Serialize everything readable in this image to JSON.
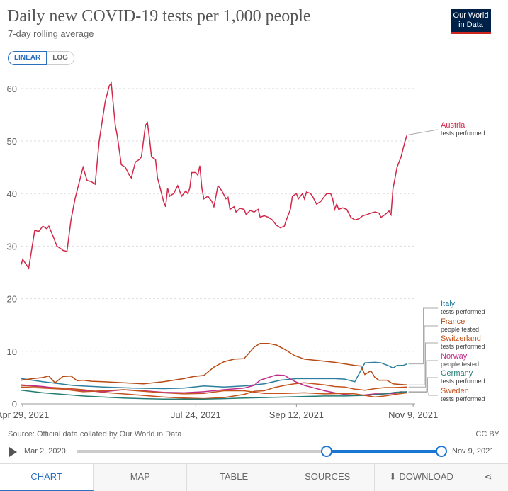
{
  "header": {
    "title": "Daily new COVID-19 tests per 1,000 people",
    "subtitle": "7-day rolling average",
    "logo_line1": "Our World",
    "logo_line2": "in Data"
  },
  "scale": {
    "linear": "LINEAR",
    "log": "LOG"
  },
  "footer": {
    "source": "Source: Official data collated by Our World in Data",
    "license": "CC BY"
  },
  "timeline": {
    "start": "Mar 2, 2020",
    "end": "Nov 9, 2021"
  },
  "tabs": {
    "chart": "CHART",
    "map": "MAP",
    "table": "TABLE",
    "sources": "SOURCES",
    "download": "DOWNLOAD"
  },
  "chart_data": {
    "type": "line",
    "title": "Daily new COVID-19 tests per 1,000 people",
    "subtitle": "7-day rolling average",
    "x_domain": [
      0,
      195
    ],
    "x_ticks": [
      {
        "day": 0,
        "label": "Apr 29, 2021"
      },
      {
        "day": 86,
        "label": "Jul 24, 2021"
      },
      {
        "day": 136,
        "label": "Sep 12, 2021"
      },
      {
        "day": 194,
        "label": "Nov 9, 2021"
      }
    ],
    "ylim": [
      0,
      62
    ],
    "y_ticks": [
      0,
      10,
      20,
      30,
      40,
      50,
      60
    ],
    "series": [
      {
        "name": "Austria",
        "unit": "tests performed",
        "color": "#d1284a",
        "points": [
          [
            -3,
            26.5
          ],
          [
            0,
            27.5
          ],
          [
            3,
            25.8
          ],
          [
            6,
            33
          ],
          [
            8,
            32.8
          ],
          [
            10,
            33.8
          ],
          [
            12,
            33.3
          ],
          [
            13,
            33.8
          ],
          [
            15,
            32
          ],
          [
            17,
            30
          ],
          [
            19,
            29.5
          ],
          [
            20,
            29.2
          ],
          [
            22,
            29
          ],
          [
            24,
            35
          ],
          [
            26,
            39
          ],
          [
            28,
            42
          ],
          [
            30,
            45
          ],
          [
            32,
            42.5
          ],
          [
            34,
            42.3
          ],
          [
            36,
            41.8
          ],
          [
            38,
            50
          ],
          [
            39,
            52.5
          ],
          [
            41,
            57.5
          ],
          [
            43,
            60.5
          ],
          [
            44,
            61
          ],
          [
            46,
            53
          ],
          [
            47,
            51
          ],
          [
            49,
            45.5
          ],
          [
            51,
            45
          ],
          [
            53,
            43.5
          ],
          [
            54,
            43
          ],
          [
            56,
            46
          ],
          [
            58,
            46.5
          ],
          [
            59,
            47
          ],
          [
            61,
            53
          ],
          [
            62,
            53.5
          ],
          [
            63,
            50.5
          ],
          [
            64,
            47
          ],
          [
            66,
            46.5
          ],
          [
            67,
            43
          ],
          [
            68,
            41.5
          ],
          [
            70,
            38.5
          ],
          [
            71,
            37.5
          ],
          [
            72,
            41
          ],
          [
            73,
            39.5
          ],
          [
            75,
            40
          ],
          [
            77,
            41.5
          ],
          [
            79,
            39.5
          ],
          [
            81,
            40.5
          ],
          [
            82,
            40
          ],
          [
            83,
            41
          ],
          [
            84,
            44
          ],
          [
            86,
            44
          ],
          [
            87,
            43.5
          ],
          [
            88,
            45.3
          ],
          [
            89,
            41
          ],
          [
            90,
            39
          ],
          [
            92,
            39.5
          ],
          [
            94,
            38.5
          ],
          [
            95,
            37.5
          ],
          [
            97,
            41.5
          ],
          [
            99,
            40.5
          ],
          [
            101,
            39
          ],
          [
            102,
            39.3
          ],
          [
            103,
            37
          ],
          [
            105,
            37.5
          ],
          [
            106,
            36.5
          ],
          [
            108,
            37.2
          ],
          [
            110,
            37
          ],
          [
            111,
            36
          ],
          [
            113,
            36.8
          ],
          [
            115,
            36.5
          ],
          [
            117,
            37
          ],
          [
            118,
            35.5
          ],
          [
            120,
            35.8
          ],
          [
            122,
            35.5
          ],
          [
            124,
            35
          ],
          [
            126,
            34
          ],
          [
            128,
            33.5
          ],
          [
            130,
            33.8
          ],
          [
            131,
            35
          ],
          [
            133,
            37
          ],
          [
            134,
            39.5
          ],
          [
            136,
            40
          ],
          [
            137,
            39
          ],
          [
            139,
            40
          ],
          [
            140,
            39
          ],
          [
            141,
            40.3
          ],
          [
            143,
            40
          ],
          [
            144,
            39.5
          ],
          [
            146,
            38
          ],
          [
            148,
            38.5
          ],
          [
            150,
            39.5
          ],
          [
            151,
            40
          ],
          [
            153,
            40
          ],
          [
            154,
            39
          ],
          [
            155,
            37
          ],
          [
            156,
            38
          ],
          [
            157,
            37
          ],
          [
            159,
            37.3
          ],
          [
            161,
            37
          ],
          [
            163,
            35.5
          ],
          [
            165,
            35
          ],
          [
            167,
            35.2
          ],
          [
            169,
            35.8
          ],
          [
            171,
            36
          ],
          [
            173,
            36.3
          ],
          [
            175,
            36.5
          ],
          [
            177,
            36.3
          ],
          [
            178,
            35.5
          ],
          [
            180,
            36
          ],
          [
            182,
            36.7
          ],
          [
            183,
            36
          ],
          [
            184,
            41
          ],
          [
            185,
            43
          ],
          [
            186,
            45
          ],
          [
            188,
            47
          ],
          [
            190,
            50
          ],
          [
            191,
            51.2
          ]
        ]
      },
      {
        "name": "Italy",
        "unit": "tests performed",
        "color": "#2a7f9e",
        "points": [
          [
            -3,
            4.8
          ],
          [
            10,
            4.2
          ],
          [
            25,
            3.5
          ],
          [
            40,
            3.2
          ],
          [
            55,
            3.0
          ],
          [
            70,
            2.9
          ],
          [
            80,
            3.0
          ],
          [
            90,
            3.4
          ],
          [
            100,
            3.2
          ],
          [
            110,
            3.4
          ],
          [
            120,
            3.8
          ],
          [
            128,
            4.5
          ],
          [
            136,
            4.8
          ],
          [
            145,
            4.8
          ],
          [
            155,
            4.8
          ],
          [
            160,
            4.7
          ],
          [
            165,
            4.2
          ],
          [
            170,
            7.8
          ],
          [
            175,
            7.9
          ],
          [
            178,
            7.8
          ],
          [
            182,
            7.2
          ],
          [
            184,
            6.8
          ],
          [
            186,
            7.3
          ],
          [
            189,
            7.3
          ],
          [
            191,
            7.6
          ]
        ]
      },
      {
        "name": "France",
        "unit": "people tested",
        "color": "#b84a13",
        "points": [
          [
            -3,
            4.5
          ],
          [
            5,
            4.8
          ],
          [
            10,
            5.0
          ],
          [
            13,
            5.3
          ],
          [
            16,
            4.0
          ],
          [
            20,
            5.2
          ],
          [
            24,
            5.3
          ],
          [
            27,
            4.4
          ],
          [
            30,
            4.5
          ],
          [
            34,
            4.3
          ],
          [
            40,
            4.2
          ],
          [
            50,
            4.0
          ],
          [
            60,
            3.8
          ],
          [
            70,
            4.2
          ],
          [
            80,
            4.8
          ],
          [
            85,
            5.2
          ],
          [
            90,
            5.4
          ],
          [
            95,
            7.0
          ],
          [
            100,
            8.0
          ],
          [
            105,
            8.5
          ],
          [
            110,
            8.6
          ],
          [
            115,
            10.8
          ],
          [
            118,
            11.5
          ],
          [
            122,
            11.5
          ],
          [
            126,
            11.2
          ],
          [
            130,
            10.4
          ],
          [
            135,
            9.2
          ],
          [
            140,
            8.5
          ],
          [
            148,
            8.2
          ],
          [
            155,
            7.9
          ],
          [
            165,
            7.3
          ],
          [
            168,
            7.2
          ],
          [
            170,
            5.6
          ],
          [
            173,
            6.3
          ],
          [
            175,
            5.0
          ],
          [
            177,
            4.5
          ],
          [
            181,
            4.5
          ],
          [
            184,
            3.8
          ],
          [
            187,
            3.7
          ],
          [
            191,
            3.6
          ]
        ]
      },
      {
        "name": "Switzerland",
        "unit": "tests performed",
        "color": "#c4521a",
        "points": [
          [
            -3,
            3.5
          ],
          [
            10,
            3.2
          ],
          [
            20,
            3.0
          ],
          [
            30,
            2.7
          ],
          [
            40,
            2.2
          ],
          [
            50,
            1.9
          ],
          [
            60,
            1.6
          ],
          [
            70,
            1.3
          ],
          [
            80,
            1.1
          ],
          [
            90,
            1.0
          ],
          [
            100,
            1.2
          ],
          [
            110,
            1.8
          ],
          [
            115,
            2.4
          ],
          [
            120,
            2.5
          ],
          [
            125,
            3.1
          ],
          [
            130,
            3.5
          ],
          [
            135,
            3.8
          ],
          [
            140,
            4.0
          ],
          [
            150,
            3.6
          ],
          [
            155,
            3.3
          ],
          [
            160,
            3.2
          ],
          [
            165,
            2.8
          ],
          [
            170,
            2.6
          ],
          [
            175,
            2.9
          ],
          [
            180,
            3.1
          ],
          [
            185,
            3.1
          ],
          [
            191,
            3.2
          ]
        ]
      },
      {
        "name": "Norway",
        "unit": "people tested",
        "color": "#c02e8a",
        "points": [
          [
            -3,
            3.6
          ],
          [
            10,
            3.3
          ],
          [
            20,
            2.8
          ],
          [
            30,
            2.5
          ],
          [
            40,
            2.3
          ],
          [
            50,
            2.7
          ],
          [
            60,
            2.5
          ],
          [
            70,
            2.2
          ],
          [
            80,
            2.1
          ],
          [
            90,
            2.3
          ],
          [
            100,
            2.7
          ],
          [
            110,
            3.0
          ],
          [
            115,
            3.5
          ],
          [
            118,
            4.5
          ],
          [
            122,
            5.0
          ],
          [
            126,
            5.5
          ],
          [
            130,
            5.4
          ],
          [
            135,
            4.3
          ],
          [
            140,
            3.5
          ],
          [
            145,
            3.0
          ],
          [
            150,
            2.5
          ],
          [
            155,
            2.1
          ],
          [
            160,
            1.8
          ],
          [
            165,
            1.6
          ],
          [
            170,
            1.7
          ],
          [
            175,
            1.9
          ],
          [
            180,
            1.9
          ],
          [
            185,
            2.0
          ],
          [
            188,
            2.3
          ],
          [
            191,
            2.2
          ]
        ]
      },
      {
        "name": "Germany",
        "unit": "tests performed",
        "color": "#237c73",
        "points": [
          [
            -3,
            2.6
          ],
          [
            10,
            2.1
          ],
          [
            20,
            1.8
          ],
          [
            30,
            1.5
          ],
          [
            40,
            1.3
          ],
          [
            50,
            1.1
          ],
          [
            60,
            1.0
          ],
          [
            70,
            0.9
          ],
          [
            80,
            0.9
          ],
          [
            90,
            0.9
          ],
          [
            100,
            1.0
          ],
          [
            110,
            1.1
          ],
          [
            120,
            1.2
          ],
          [
            130,
            1.3
          ],
          [
            140,
            1.4
          ],
          [
            150,
            1.5
          ],
          [
            160,
            1.5
          ],
          [
            170,
            1.6
          ],
          [
            180,
            1.9
          ],
          [
            185,
            2.2
          ],
          [
            191,
            2.3
          ]
        ]
      },
      {
        "name": "Sweden",
        "unit": "tests performed",
        "color": "#c6531c",
        "points": [
          [
            -3,
            3.2
          ],
          [
            10,
            3.0
          ],
          [
            20,
            2.8
          ],
          [
            30,
            2.3
          ],
          [
            40,
            2.5
          ],
          [
            50,
            2.7
          ],
          [
            60,
            2.4
          ],
          [
            70,
            2.1
          ],
          [
            80,
            1.9
          ],
          [
            90,
            2.0
          ],
          [
            100,
            2.5
          ],
          [
            110,
            2.5
          ],
          [
            120,
            2.0
          ],
          [
            130,
            2.0
          ],
          [
            140,
            2.1
          ],
          [
            150,
            1.9
          ],
          [
            160,
            2.0
          ],
          [
            165,
            1.9
          ],
          [
            170,
            1.6
          ],
          [
            175,
            1.3
          ],
          [
            180,
            1.5
          ],
          [
            185,
            1.8
          ],
          [
            191,
            2.1
          ]
        ]
      }
    ],
    "labels_order": [
      "Austria",
      "Italy",
      "France",
      "Switzerland",
      "Norway",
      "Germany",
      "Sweden"
    ]
  }
}
